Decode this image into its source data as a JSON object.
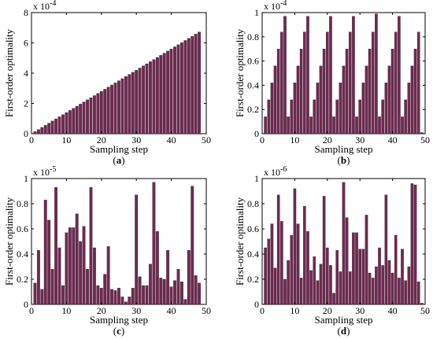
{
  "figure": {
    "bar_color": "#6e2a4f",
    "bar_edge": "#3a1a2c"
  },
  "chart_data": [
    {
      "type": "bar",
      "panel": "(a)",
      "panel_letter": "a",
      "xlabel": "Sampling step",
      "ylabel": "First-order optimality",
      "exponent": "-4",
      "xlim": [
        0,
        50
      ],
      "ylim": [
        0,
        8
      ],
      "xticks": [
        0,
        10,
        20,
        30,
        40,
        50
      ],
      "yticks": [
        0,
        2,
        4,
        6,
        8
      ],
      "x": [
        1,
        2,
        3,
        4,
        5,
        6,
        7,
        8,
        9,
        10,
        11,
        12,
        13,
        14,
        15,
        16,
        17,
        18,
        19,
        20,
        21,
        22,
        23,
        24,
        25,
        26,
        27,
        28,
        29,
        30,
        31,
        32,
        33,
        34,
        35,
        36,
        37,
        38,
        39,
        40,
        41,
        42,
        43,
        44,
        45,
        46,
        47,
        48
      ],
      "values": [
        0.14,
        0.28,
        0.42,
        0.56,
        0.7,
        0.84,
        0.98,
        1.12,
        1.26,
        1.4,
        1.54,
        1.68,
        1.82,
        1.96,
        2.1,
        2.24,
        2.38,
        2.52,
        2.66,
        2.8,
        2.94,
        3.08,
        3.22,
        3.36,
        3.5,
        3.64,
        3.78,
        3.92,
        4.06,
        4.2,
        4.34,
        4.48,
        4.62,
        4.76,
        4.9,
        5.04,
        5.18,
        5.32,
        5.46,
        5.6,
        5.74,
        5.88,
        6.02,
        6.16,
        6.3,
        6.44,
        6.58,
        6.72
      ]
    },
    {
      "type": "bar",
      "panel": "(b)",
      "panel_letter": "b",
      "xlabel": "Sampling step",
      "ylabel": "First-order optimality",
      "exponent": "-4",
      "xlim": [
        0,
        50
      ],
      "ylim": [
        0,
        1
      ],
      "xticks": [
        0,
        10,
        20,
        30,
        40,
        50
      ],
      "yticks": [
        0,
        0.2,
        0.4,
        0.6,
        0.8,
        1
      ],
      "x": [
        1,
        2,
        3,
        4,
        5,
        6,
        7,
        8,
        9,
        10,
        11,
        12,
        13,
        14,
        15,
        16,
        17,
        18,
        19,
        20,
        21,
        22,
        23,
        24,
        25,
        26,
        27,
        28,
        29,
        30,
        31,
        32,
        33,
        34,
        35,
        36,
        37,
        38,
        39,
        40,
        41,
        42,
        43,
        44,
        45,
        46,
        47,
        48,
        49
      ],
      "values": [
        0.14,
        0.28,
        0.42,
        0.56,
        0.7,
        0.84,
        0.97,
        0.14,
        0.28,
        0.42,
        0.56,
        0.7,
        0.84,
        0.97,
        0.14,
        0.28,
        0.42,
        0.56,
        0.7,
        0.84,
        0.97,
        0.14,
        0.28,
        0.42,
        0.56,
        0.7,
        0.84,
        0.97,
        0.14,
        0.28,
        0.42,
        0.56,
        0.7,
        0.84,
        0.99,
        0.14,
        0.28,
        0.42,
        0.56,
        0.7,
        0.84,
        0.97,
        0.14,
        0.28,
        0.42,
        0.56,
        0.7,
        0.84,
        0.01
      ]
    },
    {
      "type": "bar",
      "panel": "(c)",
      "panel_letter": "c",
      "xlabel": "Sampling step",
      "ylabel": "First-order optimality",
      "exponent": "-5",
      "xlim": [
        0,
        50
      ],
      "ylim": [
        0,
        1
      ],
      "xticks": [
        0,
        10,
        20,
        30,
        40,
        50
      ],
      "yticks": [
        0,
        0.2,
        0.4,
        0.6,
        0.8,
        1
      ],
      "x": [
        1,
        2,
        3,
        4,
        5,
        6,
        7,
        8,
        9,
        10,
        11,
        12,
        13,
        14,
        15,
        16,
        17,
        18,
        19,
        20,
        21,
        22,
        23,
        24,
        25,
        26,
        27,
        28,
        29,
        30,
        31,
        32,
        33,
        34,
        35,
        36,
        37,
        38,
        39,
        40,
        41,
        42,
        43,
        44,
        45,
        46,
        47,
        48
      ],
      "values": [
        0.17,
        0.43,
        0.12,
        0.83,
        0.67,
        0.28,
        0.93,
        0.45,
        0.15,
        0.57,
        0.61,
        0.61,
        0.72,
        0.5,
        0.62,
        0.28,
        0.93,
        0.45,
        0.15,
        0.13,
        0.24,
        0.46,
        0.12,
        0.11,
        0.13,
        0.06,
        0.02,
        0.06,
        0.13,
        0.87,
        0.22,
        0.15,
        0.15,
        0.32,
        0.97,
        0.58,
        0.21,
        0.2,
        0.43,
        0.14,
        0.19,
        0.28,
        0.18,
        0.04,
        0.43,
        0.94,
        0.23,
        0.17
      ]
    },
    {
      "type": "bar",
      "panel": "(d)",
      "panel_letter": "d",
      "xlabel": "Sampling step",
      "ylabel": "First-order optimality",
      "exponent": "-6",
      "xlim": [
        0,
        50
      ],
      "ylim": [
        0,
        1
      ],
      "xticks": [
        0,
        10,
        20,
        30,
        40,
        50
      ],
      "yticks": [
        0,
        0.2,
        0.4,
        0.6,
        0.8,
        1
      ],
      "x": [
        1,
        2,
        3,
        4,
        5,
        6,
        7,
        8,
        9,
        10,
        11,
        12,
        13,
        14,
        15,
        16,
        17,
        18,
        19,
        20,
        21,
        22,
        23,
        24,
        25,
        26,
        27,
        28,
        29,
        30,
        31,
        32,
        33,
        34,
        35,
        36,
        37,
        38,
        39,
        40,
        41,
        42,
        43,
        44,
        45,
        46,
        47,
        48,
        49
      ],
      "values": [
        0.45,
        0.52,
        0.64,
        0.29,
        0.87,
        0.66,
        0.2,
        0.35,
        0.55,
        0.92,
        0.64,
        0.21,
        0.78,
        0.58,
        0.27,
        0.38,
        0.19,
        0.32,
        0.86,
        0.45,
        0.31,
        0.09,
        0.43,
        0.26,
        0.97,
        0.69,
        0.26,
        0.57,
        0.57,
        0.44,
        0.44,
        0.71,
        0.25,
        0.21,
        0.3,
        0.45,
        0.31,
        0.87,
        0.35,
        0.25,
        0.55,
        0.21,
        0.44,
        0.19,
        0.3,
        0.96,
        0.95,
        0.18,
        0.01
      ]
    }
  ]
}
